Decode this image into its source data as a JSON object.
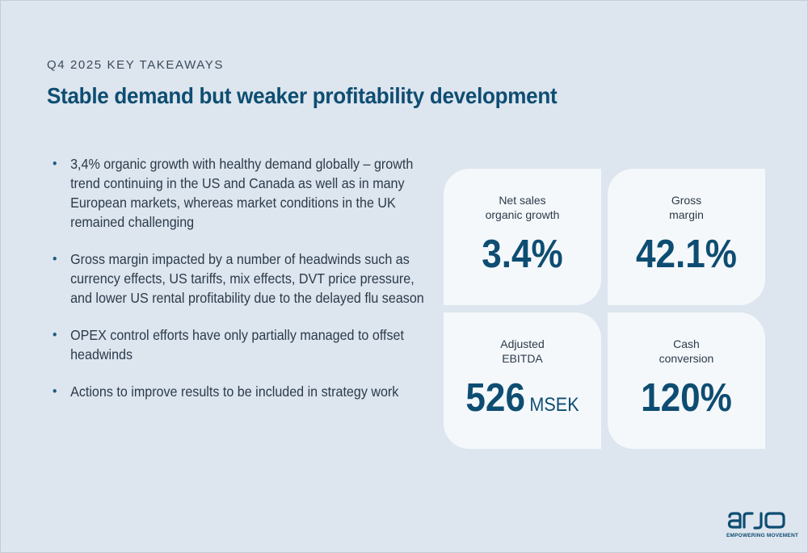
{
  "header": {
    "kicker": "Q4 2025 KEY TAKEAWAYS",
    "title": "Stable demand but weaker profitability development"
  },
  "bullets": [
    "3,4% organic growth with healthy demand globally – growth trend continuing in the US and Canada as well as in many European markets, whereas market conditions in the UK remained challenging",
    "Gross margin impacted by a number of headwinds such as currency effects, US tariffs, mix effects, DVT price pressure, and lower US rental profitability due to the delayed flu season",
    "OPEX control efforts have only partially managed to offset headwinds",
    "Actions to improve results to be included in strategy work"
  ],
  "kpis": [
    {
      "label": "Net sales\norganic growth",
      "value": "3.4%",
      "unit": ""
    },
    {
      "label": "Gross\nmargin",
      "value": "42.1%",
      "unit": ""
    },
    {
      "label": "Adjusted\nEBITDA",
      "value": "526",
      "unit": "MSEK"
    },
    {
      "label": "Cash\nconversion",
      "value": "120%",
      "unit": ""
    }
  ],
  "logo": {
    "wordmark": "arjo",
    "tagline": "EMPOWERING MOVEMENT"
  },
  "colors": {
    "background": "#dde5ee",
    "card": "#f5f8fb",
    "accent": "#0e4d72",
    "text": "#2b3b4b"
  }
}
